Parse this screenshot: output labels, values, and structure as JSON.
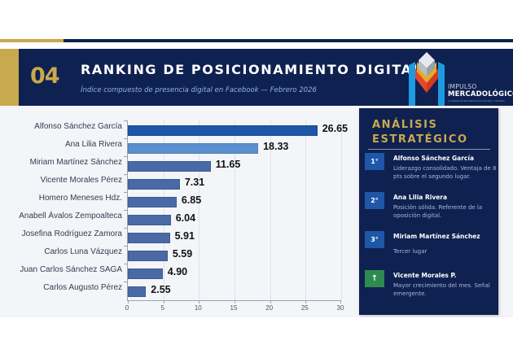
{
  "header": {
    "section_number": "04",
    "title": "RANKING DE POSICIONAMIENTO DIGITAL",
    "subtitle": "Índice compuesto de presencia digital en Facebook — Febrero 2026"
  },
  "logo": {
    "line1": "IMPULSO",
    "line2": "MERCADOLÓGICO",
    "tagline": "LO MEJOR EN ENCUESTAS DE ESTUDIO Y OPINIÓN"
  },
  "colors": {
    "navy": "#0f2150",
    "gold": "#c9a94e",
    "bar_first": "#1e57a8",
    "bar_second": "#5b8ecc",
    "bar_default": "#4a6aa5",
    "growth_green": "#2e8b4f"
  },
  "chart_data": {
    "type": "bar",
    "orientation": "horizontal",
    "title": "RANKING DE POSICIONAMIENTO DIGITAL",
    "subtitle": "Índice compuesto de presencia digital en Facebook — Febrero 2026",
    "categories": [
      "Alfonso Sánchez García",
      "Ana Lilia Rivera",
      "Miriam Martínez Sánchez",
      "Vicente Morales Pérez",
      "Homero Meneses Hdz.",
      "Anabell Ávalos Zempoalteca",
      "Josefina Rodríguez Zamora",
      "Carlos Luna Vázquez",
      "Juan Carlos Sánchez SAGA",
      "Carlos Augusto Pérez"
    ],
    "values": [
      26.65,
      18.33,
      11.65,
      7.31,
      6.85,
      6.04,
      5.91,
      5.59,
      4.9,
      2.55
    ],
    "value_labels": [
      "26.65",
      "18.33",
      "11.65",
      "7.31",
      "6.85",
      "6.04",
      "5.91",
      "5.59",
      "4.90",
      "2.55"
    ],
    "xlabel": "",
    "ylabel": "",
    "xlim": [
      0,
      30
    ],
    "xticks": [
      "0",
      "5",
      "10",
      "15",
      "20",
      "25",
      "30"
    ],
    "grid": true,
    "legend": "none"
  },
  "panel": {
    "title_line1": "ANÁLISIS",
    "title_line2": "ESTRATÉGICO",
    "items": [
      {
        "badge": "1°",
        "name": "Alfonso Sánchez García",
        "desc": "Liderazgo consolidado. Ventaja de 8 pts sobre el segundo lugar."
      },
      {
        "badge": "2°",
        "name": "Ana Lilia Rivera",
        "desc": "Posición sólida. Referente de la oposición digital."
      },
      {
        "badge": "3°",
        "name": "Miriam Martínez Sánchez",
        "desc": "Tercer lugar"
      },
      {
        "badge": "↑",
        "icon": "arrow-up-icon",
        "name": "Vicente Morales P.",
        "desc": "Mayor crecimiento del mes. Señal emergente."
      }
    ]
  }
}
